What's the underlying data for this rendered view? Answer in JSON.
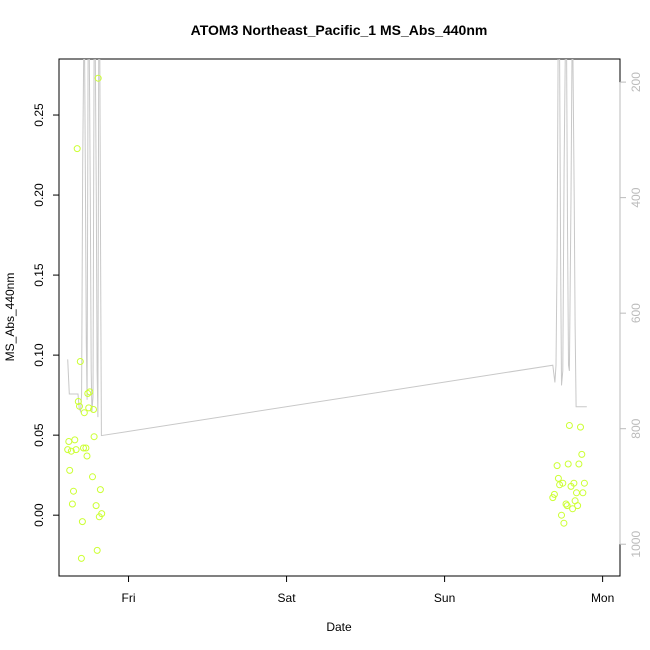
{
  "chart_data": {
    "type": "scatter",
    "title": "ATOM3 Northeast_Pacific_1 MS_Abs_440nm",
    "xlabel": "Date",
    "ylabel": "MS_Abs_440nm",
    "x_tick_labels": [
      "Fri",
      "Sat",
      "Sun",
      "Mon"
    ],
    "x_tick_values": [
      1,
      2,
      3,
      4
    ],
    "xlim": [
      0.56,
      4.11
    ],
    "ylim": [
      -0.038,
      0.285
    ],
    "y_ticks": [
      0.0,
      0.05,
      0.1,
      0.15,
      0.2,
      0.25
    ],
    "y_tick_labels": [
      "0.00",
      "0.05",
      "0.10",
      "0.15",
      "0.20",
      "0.25"
    ],
    "y2_ticks": [
      200,
      400,
      600,
      800,
      1000
    ],
    "y2_tick_labels": [
      "200",
      "400",
      "600",
      "800",
      "1000"
    ],
    "y2_lim": [
      1055,
      160
    ],
    "grid": false,
    "colors": {
      "points": "#ccff33",
      "line": "#c8c8c8",
      "right_axis": "#bbbbbb"
    },
    "series": [
      {
        "kind": "points",
        "points": [
          [
            0.615,
            0.041
          ],
          [
            0.622,
            0.046
          ],
          [
            0.628,
            0.028
          ],
          [
            0.638,
            0.04
          ],
          [
            0.645,
            0.007
          ],
          [
            0.652,
            0.015
          ],
          [
            0.66,
            0.047
          ],
          [
            0.668,
            0.041
          ],
          [
            0.675,
            0.229
          ],
          [
            0.682,
            0.071
          ],
          [
            0.69,
            0.068
          ],
          [
            0.695,
            0.096
          ],
          [
            0.702,
            -0.027
          ],
          [
            0.708,
            -0.004
          ],
          [
            0.715,
            0.042
          ],
          [
            0.72,
            0.064
          ],
          [
            0.73,
            0.042
          ],
          [
            0.737,
            0.037
          ],
          [
            0.742,
            0.076
          ],
          [
            0.748,
            0.067
          ],
          [
            0.755,
            0.077
          ],
          [
            0.772,
            0.024
          ],
          [
            0.778,
            0.066
          ],
          [
            0.782,
            0.049
          ],
          [
            0.795,
            0.006
          ],
          [
            0.802,
            -0.022
          ],
          [
            0.808,
            0.273
          ],
          [
            0.815,
            -0.001
          ],
          [
            0.822,
            0.016
          ],
          [
            0.83,
            0.001
          ],
          [
            3.685,
            0.011
          ],
          [
            3.695,
            0.013
          ],
          [
            3.712,
            0.031
          ],
          [
            3.72,
            0.023
          ],
          [
            3.728,
            0.019
          ],
          [
            3.74,
            0.0
          ],
          [
            3.748,
            0.02
          ],
          [
            3.755,
            -0.005
          ],
          [
            3.768,
            0.007
          ],
          [
            3.775,
            0.006
          ],
          [
            3.79,
            0.056
          ],
          [
            3.782,
            0.032
          ],
          [
            3.8,
            0.018
          ],
          [
            3.81,
            0.004
          ],
          [
            3.818,
            0.02
          ],
          [
            3.826,
            0.009
          ],
          [
            3.835,
            0.014
          ],
          [
            3.842,
            0.006
          ],
          [
            3.85,
            0.032
          ],
          [
            3.86,
            0.055
          ],
          [
            3.868,
            0.038
          ],
          [
            3.875,
            0.014
          ],
          [
            3.885,
            0.02
          ]
        ]
      },
      {
        "kind": "line",
        "axis": "right",
        "points": [
          [
            0.615,
            680
          ],
          [
            0.625,
            740
          ],
          [
            0.635,
            740
          ],
          [
            0.645,
            740
          ],
          [
            0.66,
            740
          ],
          [
            0.672,
            740
          ],
          [
            0.68,
            740
          ],
          [
            0.688,
            765
          ],
          [
            0.697,
            770
          ],
          [
            0.703,
            740
          ],
          [
            0.71,
            340
          ],
          [
            0.716,
            150
          ],
          [
            0.722,
            150
          ],
          [
            0.728,
            400
          ],
          [
            0.733,
            650
          ],
          [
            0.738,
            750
          ],
          [
            0.744,
            150
          ],
          [
            0.752,
            150
          ],
          [
            0.758,
            400
          ],
          [
            0.764,
            700
          ],
          [
            0.768,
            770
          ],
          [
            0.775,
            745
          ],
          [
            0.782,
            150
          ],
          [
            0.79,
            150
          ],
          [
            0.796,
            400
          ],
          [
            0.801,
            700
          ],
          [
            0.806,
            780
          ],
          [
            0.811,
            150
          ],
          [
            0.818,
            150
          ],
          [
            0.823,
            500
          ],
          [
            0.828,
            812
          ],
          [
            3.685,
            690
          ],
          [
            3.698,
            720
          ],
          [
            3.705,
            690
          ],
          [
            3.712,
            500
          ],
          [
            3.718,
            150
          ],
          [
            3.728,
            150
          ],
          [
            3.734,
            500
          ],
          [
            3.74,
            725
          ],
          [
            3.748,
            700
          ],
          [
            3.756,
            350
          ],
          [
            3.764,
            150
          ],
          [
            3.772,
            150
          ],
          [
            3.778,
            450
          ],
          [
            3.784,
            690
          ],
          [
            3.79,
            700
          ],
          [
            3.8,
            400
          ],
          [
            3.806,
            150
          ],
          [
            3.812,
            150
          ],
          [
            3.82,
            400
          ],
          [
            3.826,
            620
          ],
          [
            3.832,
            762
          ],
          [
            3.838,
            762
          ],
          [
            3.9,
            762
          ]
        ]
      }
    ]
  }
}
